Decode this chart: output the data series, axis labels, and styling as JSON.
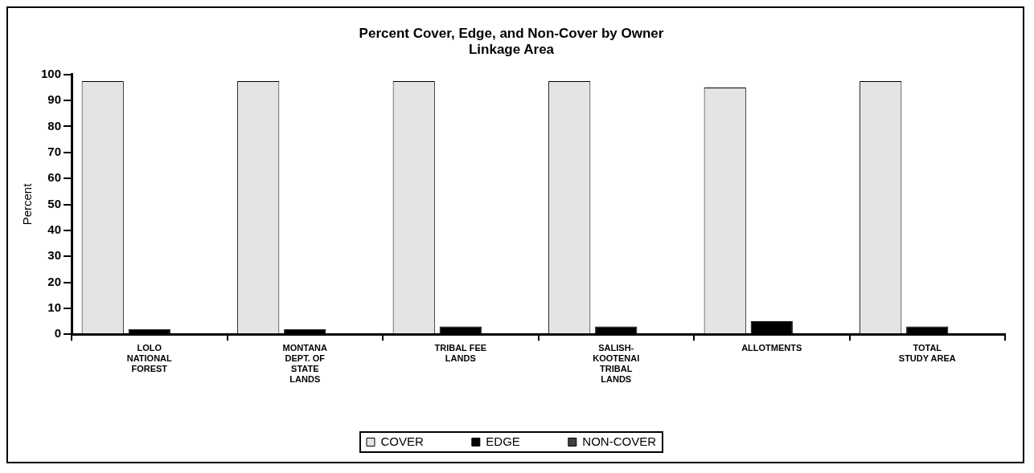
{
  "chart_data": {
    "type": "bar",
    "title": [
      "Percent Cover, Edge, and Non-Cover by Owner",
      "Linkage Area"
    ],
    "ylabel": "Percent",
    "categories": [
      "LOLO NATIONAL FOREST",
      "MONTANA DEPT. OF STATE LANDS",
      "TRIBAL FEE LANDS",
      "SALISH-KOOTENAI TRIBAL LANDS",
      "ALLOTMENTS",
      "TOTAL STUDY AREA"
    ],
    "series": [
      {
        "name": "COVER",
        "color": "#e4e4e4",
        "values": [
          97.5,
          97.5,
          97.5,
          97.5,
          95,
          97.5
        ]
      },
      {
        "name": "EDGE",
        "color": "#000000",
        "values": [
          2,
          2,
          3,
          3,
          5,
          3
        ]
      },
      {
        "name": "NON-COVER",
        "color": "#404040",
        "values": [
          0,
          0,
          0,
          0,
          0,
          0
        ]
      }
    ],
    "ylim": [
      0,
      100
    ],
    "yticks": [
      0,
      10,
      20,
      30,
      40,
      50,
      60,
      70,
      80,
      90,
      100
    ],
    "grid": false,
    "legend": "bottom"
  }
}
